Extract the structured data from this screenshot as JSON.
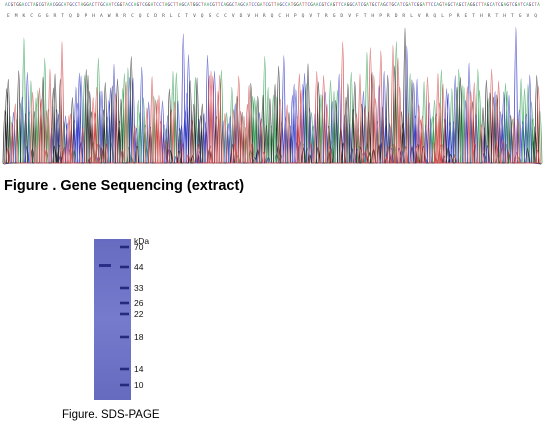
{
  "sequencing": {
    "caption": "Figure . Gene Sequencing (extract)",
    "bases": "ACGTGGACCTAGCGTAACGGCATGCCTAGGACTTGCAATCGGTACCAGTCGGATCCTAGCTTAGCATGGCTAACGTTCAGGCTAGCATCCGATCGTTAGCCATGGATTCGAACGTCAGTTCAGGCATCGATGCTAGCTGCATCGATCGGATTCCAGTAGCTAGCTAGGCTTAGCATCGAGTCGATCAGCTA",
    "protein_track": "EMKCGGRTQDPHAWRRCQCDRLCTVQSCCVDVHRQCHPQVTRGDVFTHPRDRLVRQLPRETHRTHTGVQ",
    "colors": {
      "A": "#3aa35a",
      "C": "#3d43c8",
      "G": "#2a2a2a",
      "T": "#d24a4a"
    }
  },
  "gel": {
    "caption": "Figure. SDS-PAGE",
    "unit_label": "kDa",
    "markers": [
      "70",
      "44",
      "33",
      "26",
      "22",
      "18",
      "14",
      "10"
    ],
    "gel_color": "#6f74c9",
    "sample_band_kda": "44"
  }
}
